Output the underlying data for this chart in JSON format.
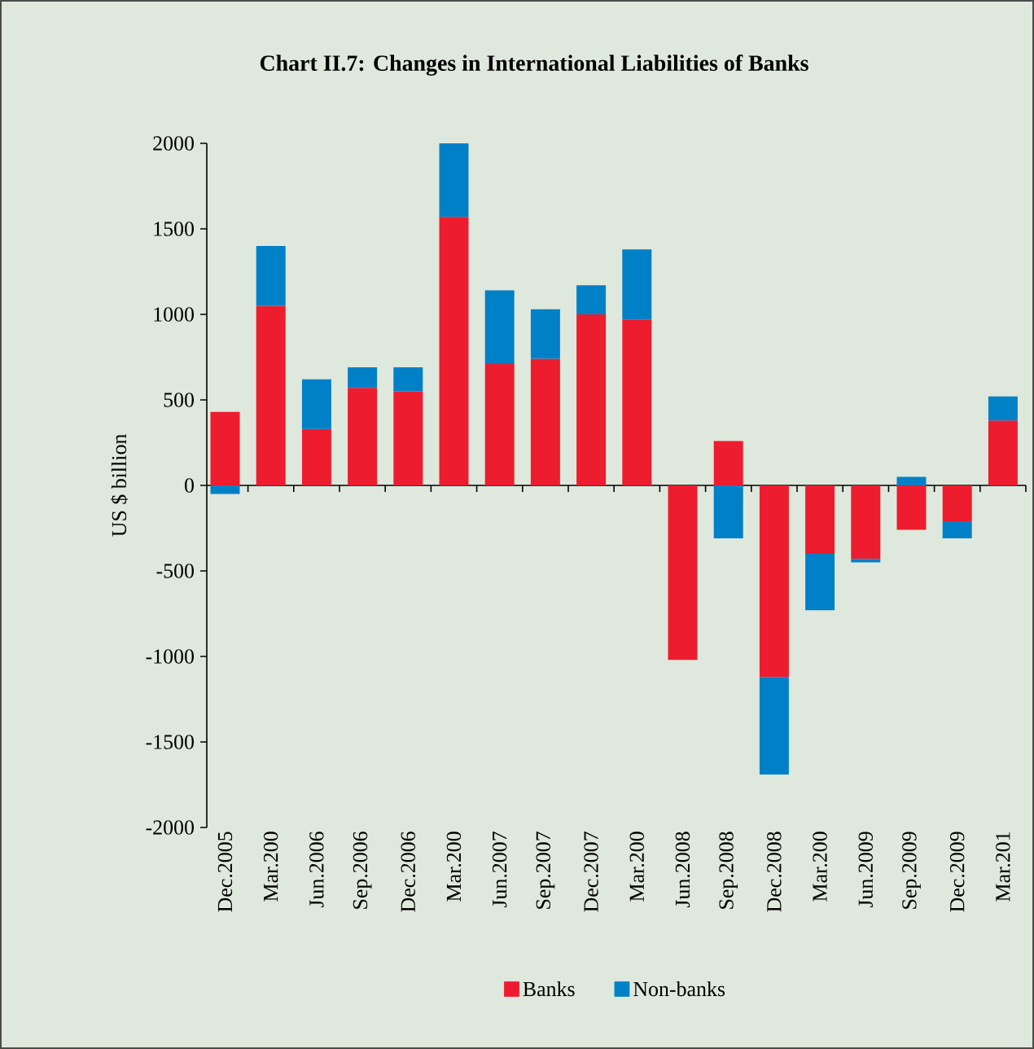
{
  "chart_data": {
    "type": "bar",
    "stacked": true,
    "title": "Chart II.7: Changes in International Liabilities of Banks",
    "ylabel": "US $ billion",
    "categories": [
      "Dec.2005",
      "Mar.200",
      "Jun.2006",
      "Sep.2006",
      "Dec.2006",
      "Mar.200",
      "Jun.2007",
      "Sep.2007",
      "Dec.2007",
      "Mar.200",
      "Jun.2008",
      "Sep.2008",
      "Dec.2008",
      "Mar.200",
      "Jun.2009",
      "Sep.2009",
      "Dec.2009",
      "Mar.201"
    ],
    "series": [
      {
        "name": "Banks",
        "color": "#ed1c2e",
        "values": [
          430,
          1050,
          330,
          570,
          550,
          1570,
          710,
          740,
          1000,
          970,
          -1020,
          260,
          -1120,
          -400,
          -430,
          -260,
          -210,
          380
        ]
      },
      {
        "name": "Non-banks",
        "color": "#0080c6",
        "values": [
          -50,
          350,
          290,
          120,
          140,
          430,
          430,
          290,
          170,
          410,
          null,
          -310,
          -570,
          -330,
          -20,
          50,
          -100,
          140
        ]
      }
    ],
    "ylim": [
      -2000,
      2000
    ],
    "yticks": [
      -2000,
      -1500,
      -1000,
      -500,
      0,
      500,
      1000,
      1500,
      2000
    ],
    "legend": "bottom"
  }
}
